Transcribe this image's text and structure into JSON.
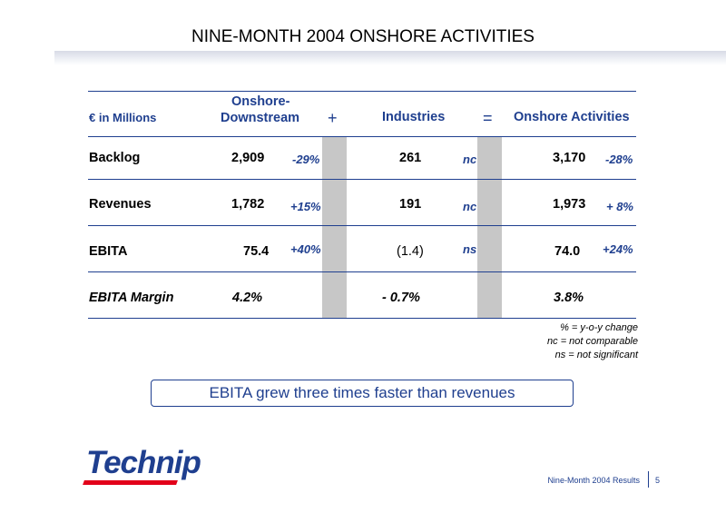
{
  "title": "NINE-MONTH 2004 ONSHORE ACTIVITIES",
  "table": {
    "unit_label": "€ in Millions",
    "col_onshore_downstream_line1": "Onshore-",
    "col_onshore_downstream_line2": "Downstream",
    "plus_sign": "+",
    "col_industries": "Industries",
    "equals_sign": "=",
    "col_onshore_activities": "Onshore Activities",
    "rows": [
      {
        "label": "Backlog",
        "downstream": "2,909",
        "downstream_change": "-29%",
        "industries": "261",
        "industries_change": "nc",
        "activities": "3,170",
        "activities_change": "-28%"
      },
      {
        "label": "Revenues",
        "downstream": "1,782",
        "downstream_change": "+15%",
        "industries": "191",
        "industries_change": "nc",
        "activities": "1,973",
        "activities_change": "+ 8%"
      },
      {
        "label": "EBITA",
        "downstream": "75.4",
        "downstream_change": "+40%",
        "industries": "(1.4)",
        "industries_change": "ns",
        "activities": "74.0",
        "activities_change": "+24%"
      },
      {
        "label": "EBITA Margin",
        "downstream": "4.2%",
        "downstream_change": "",
        "industries": "- 0.7%",
        "industries_change": "",
        "activities": "3.8%",
        "activities_change": ""
      }
    ]
  },
  "notes": [
    "% = y-o-y change",
    "nc = not comparable",
    "ns = not significant"
  ],
  "callout": "EBITA grew three times faster than revenues",
  "logo_text": "Technip",
  "footer": "Nine-Month 2004 Results",
  "page_number": "5",
  "colors": {
    "accent": "#1f3f8f",
    "logo_red": "#e2001a",
    "column_gray": "#c7c7c7"
  }
}
